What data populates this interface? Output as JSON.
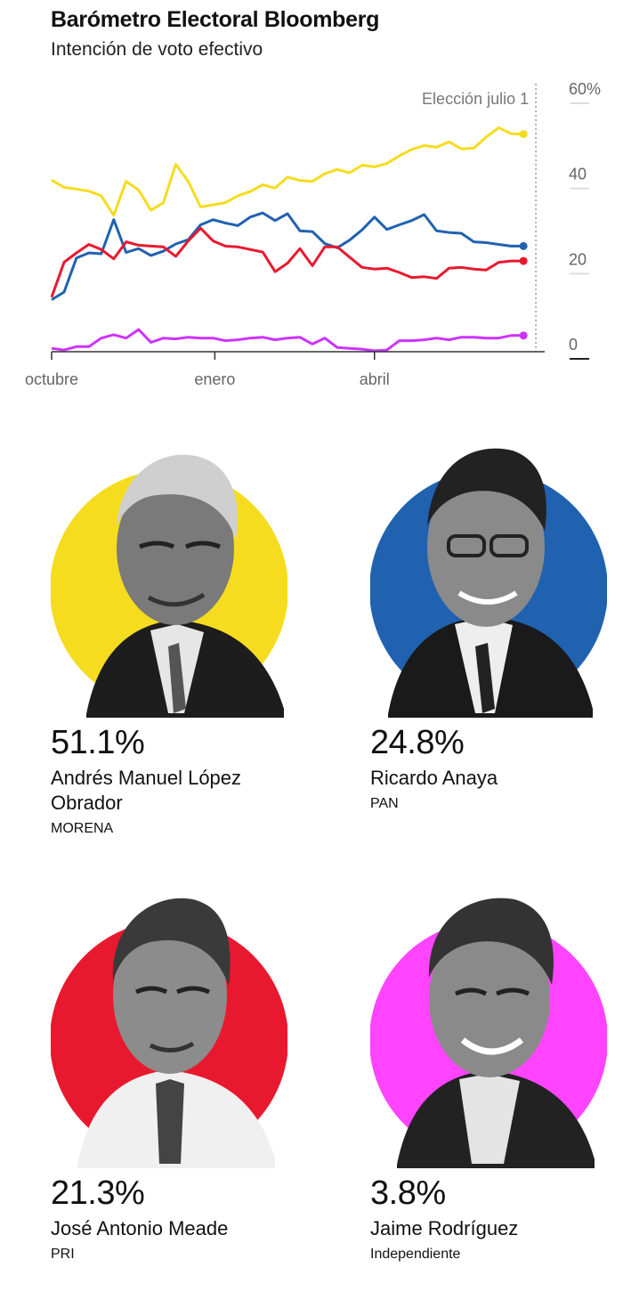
{
  "header": {
    "title": "Barómetro Electoral Bloomberg",
    "subtitle": "Intención de voto efectivo"
  },
  "chart_data": {
    "type": "line",
    "title": "Barómetro Electoral Bloomberg",
    "subtitle": "Intención de voto efectivo",
    "xlabel": "",
    "ylabel": "",
    "x_tick_labels": [
      "octubre",
      "enero",
      "abril"
    ],
    "y_ticks": [
      0,
      20,
      40,
      60
    ],
    "y_tick_labels": [
      "0",
      "20",
      "40",
      "60%"
    ],
    "ylim": [
      0,
      60
    ],
    "x": [
      "2017-10-01",
      "2017-10-08",
      "2017-10-15",
      "2017-10-22",
      "2017-10-29",
      "2017-11-05",
      "2017-11-12",
      "2017-11-19",
      "2017-11-26",
      "2017-12-03",
      "2017-12-10",
      "2017-12-17",
      "2017-12-24",
      "2017-12-31",
      "2018-01-07",
      "2018-01-14",
      "2018-01-21",
      "2018-01-28",
      "2018-02-04",
      "2018-02-11",
      "2018-02-18",
      "2018-02-25",
      "2018-03-04",
      "2018-03-11",
      "2018-03-18",
      "2018-03-25",
      "2018-04-01",
      "2018-04-08",
      "2018-04-15",
      "2018-04-22",
      "2018-04-29",
      "2018-05-06",
      "2018-05-13",
      "2018-05-20",
      "2018-05-27",
      "2018-06-03",
      "2018-06-10",
      "2018-06-17",
      "2018-06-24"
    ],
    "series": [
      {
        "name": "Andrés Manuel López Obrador",
        "color": "#f5dc1f",
        "values": [
          40.3,
          38.6,
          38.2,
          37.7,
          36.6,
          32.0,
          40.0,
          38.0,
          33.2,
          35.0,
          44.0,
          40.0,
          34.0,
          34.5,
          35.0,
          36.6,
          37.6,
          39.2,
          38.4,
          41.0,
          40.2,
          40.0,
          41.8,
          42.8,
          42.0,
          43.8,
          43.4,
          44.2,
          46.0,
          47.5,
          48.4,
          48.0,
          49.3,
          47.6,
          47.8,
          50.4,
          52.6,
          51.2,
          51.1
        ]
      },
      {
        "name": "Ricardo Anaya",
        "color": "#2062b0",
        "values": [
          12.2,
          14.0,
          22.0,
          23.2,
          23.0,
          31.0,
          23.3,
          24.2,
          22.6,
          23.6,
          25.3,
          26.3,
          29.8,
          31.0,
          30.2,
          29.6,
          31.6,
          32.6,
          30.8,
          32.4,
          28.4,
          28.2,
          25.4,
          24.4,
          26.2,
          28.6,
          31.6,
          28.7,
          29.8,
          30.8,
          32.2,
          28.4,
          28.0,
          27.8,
          25.8,
          25.6,
          25.2,
          24.8,
          24.8
        ]
      },
      {
        "name": "José Antonio Meade",
        "color": "#e8192e",
        "values": [
          12.8,
          21.0,
          23.2,
          25.2,
          24.0,
          21.8,
          25.8,
          25.0,
          24.8,
          24.6,
          22.4,
          26.0,
          29.0,
          26.0,
          24.8,
          24.6,
          24.0,
          23.4,
          18.8,
          20.8,
          24.2,
          20.2,
          24.6,
          24.6,
          22.2,
          19.8,
          19.4,
          19.6,
          18.6,
          17.4,
          17.6,
          17.2,
          19.6,
          19.8,
          19.4,
          19.2,
          21.0,
          21.3,
          21.3
        ]
      },
      {
        "name": "Jaime Rodríguez",
        "color": "#cc33ff",
        "values": [
          0.8,
          0.4,
          1.2,
          1.2,
          3.2,
          4.0,
          3.2,
          5.2,
          2.2,
          3.2,
          3.0,
          3.4,
          3.2,
          3.2,
          2.6,
          2.8,
          3.2,
          3.4,
          2.8,
          3.2,
          3.4,
          1.8,
          3.2,
          1.0,
          0.8,
          0.6,
          0.2,
          0.4,
          2.6,
          2.6,
          2.8,
          3.2,
          2.8,
          3.4,
          3.4,
          3.2,
          3.2,
          3.8,
          3.8
        ]
      }
    ],
    "annotations": [
      {
        "label": "Elección julio 1",
        "x": "2018-07-01"
      }
    ],
    "grid": false,
    "legend": "none"
  },
  "candidates": [
    {
      "pct": "51.1%",
      "name_line1": "Andrés Manuel López",
      "name_line2": "Obrador",
      "party": "MORENA",
      "color": "#f5dc1f"
    },
    {
      "pct": "24.8%",
      "name_line1": "Ricardo Anaya",
      "name_line2": "",
      "party": "PAN",
      "color": "#2062b0"
    },
    {
      "pct": "21.3%",
      "name_line1": "José Antonio Meade",
      "name_line2": "",
      "party": "PRI",
      "color": "#e8192e"
    },
    {
      "pct": "3.8%",
      "name_line1": "Jaime Rodríguez",
      "name_line2": "",
      "party": "Independiente",
      "color": "#ff44ff"
    }
  ]
}
